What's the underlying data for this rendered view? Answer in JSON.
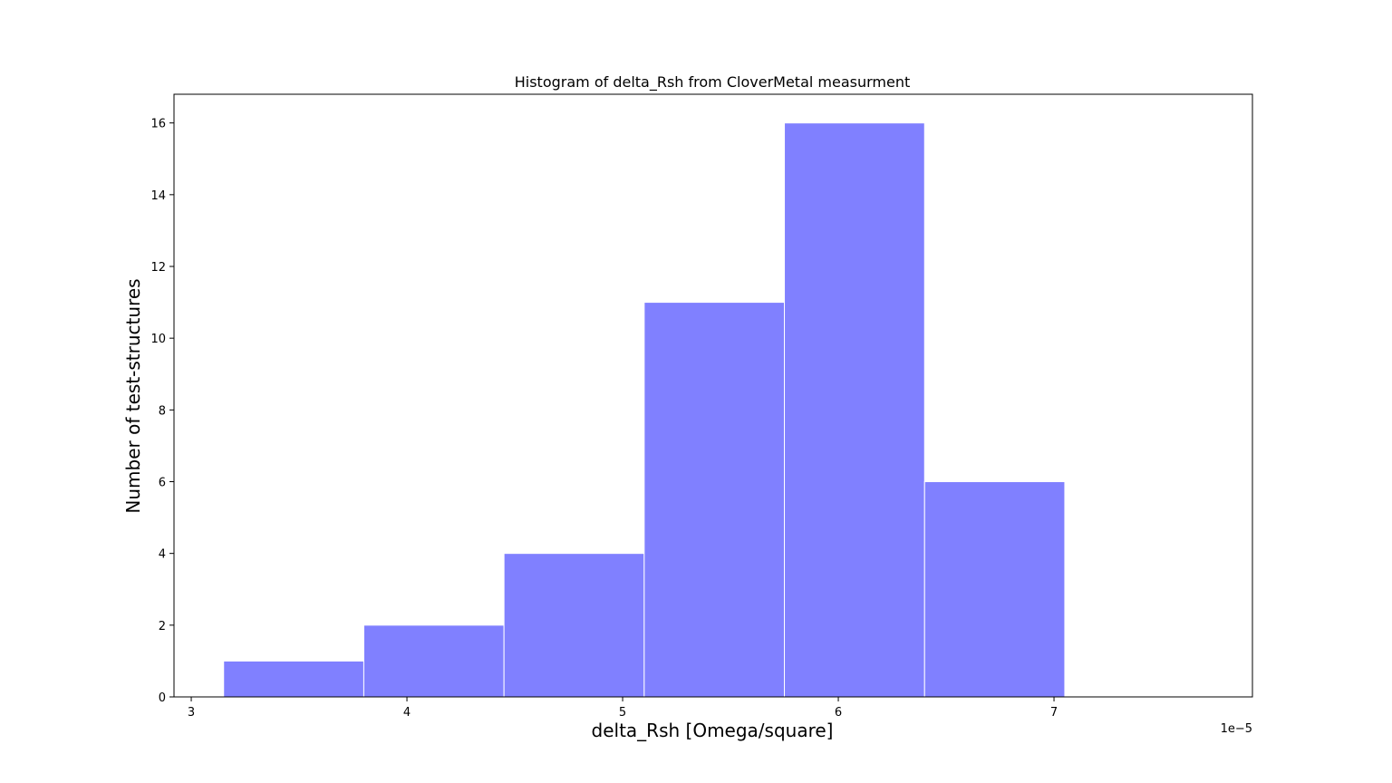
{
  "chart_data": {
    "type": "bar",
    "title": "Histogram of delta_Rsh from CloverMetal measurment",
    "xlabel": "delta_Rsh [Omega/square]",
    "ylabel": "Number of test-structures",
    "x_offset_label": "1e−5",
    "bin_edges": [
      3.15,
      3.8,
      4.45,
      5.1,
      5.75,
      6.4,
      7.05
    ],
    "values": [
      1,
      2,
      4,
      11,
      16,
      6
    ],
    "xlim": [
      2.92,
      7.92
    ],
    "ylim": [
      0,
      16.8
    ],
    "x_ticks": [
      3,
      4,
      5,
      6,
      7
    ],
    "x_tick_labels": [
      "3",
      "4",
      "5",
      "6",
      "7"
    ],
    "y_ticks": [
      0,
      2,
      4,
      6,
      8,
      10,
      12,
      14,
      16
    ],
    "y_tick_labels": [
      "0",
      "2",
      "4",
      "6",
      "8",
      "10",
      "12",
      "14",
      "16"
    ],
    "bar_color": "#8080ff",
    "bar_edge_color": "#ffffff",
    "grid": false
  }
}
